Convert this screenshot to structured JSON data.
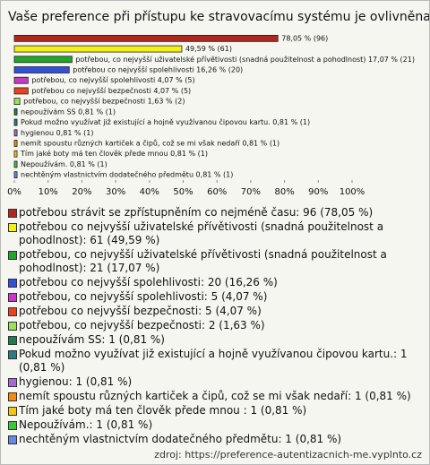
{
  "chart_data": {
    "type": "hbar",
    "title": "Vaše preference při přístupu ke stravovacímu systému je ovlivněna:",
    "values": [
      78.05,
      49.59,
      17.07,
      16.26,
      4.07,
      4.07,
      1.63,
      0.81,
      0.81,
      0.81,
      0.81,
      0.81,
      0.81,
      0.81
    ],
    "value_labels": [
      "78,05 % (96)",
      "49,59 % (61)",
      "potřebou, co nejvyšší uživatelské přívětivosti (snadná použitelnost a pohodlnost) 17,07 % (21)",
      "potřebou co nejvyšší spolehlivosti 16,26 % (20)",
      "potřebou, co nejvyšší spolehlivosti 4,07 % (5)",
      "potřebou co nejvyšší bezpečnosti 4,07 % (5)",
      "potřebou, co nejvyšší bezpečnosti 1,63 % (2)",
      "nepoužívám SS 0,81 % (1)",
      "Pokud možno využívat již existující a hojně využívanou čipovou kartu. 0,81 % (1)",
      "hygienou 0,81 % (1)",
      "nemít spoustu různých kartiček a čipů, což se mi však nedaří 0,81 % (1)",
      "Tím jaké boty má ten člověk přede mnou  0,81 % (1)",
      "Nepoužívám. 0,81 % (1)",
      "nechtěným vlastnictvím dodatečného předmětu 0,81 % (1)"
    ],
    "colors": [
      "#b3261e",
      "#f2ef1a",
      "#22a52a",
      "#3350d6",
      "#c838c8",
      "#e8431f",
      "#98e060",
      "#237a52",
      "#2f7884",
      "#a86ad0",
      "#f28a14",
      "#f5c518",
      "#3cc63c",
      "#6688dd"
    ],
    "legend": [
      "potřebou strávit se zpřístupněním co nejméně času: 96 (78,05 %)",
      "potřebou co nejvyšší uživatelské přívětivosti (snadná použitelnost a pohodlnost): 61 (49,59 %)",
      "potřebou, co nejvyšší uživatelské přívětivosti (snadná použitelnost a pohodlnost): 21 (17,07 %)",
      "potřebou co nejvyšší spolehlivosti: 20 (16,26 %)",
      "potřebou, co nejvyšší spolehlivosti: 5 (4,07 %)",
      "potřebou co nejvyšší bezpečnosti: 5 (4,07 %)",
      "potřebou, co nejvyšší bezpečnosti: 2 (1,63 %)",
      "nepoužívám SS: 1 (0,81 %)",
      "Pokud možno využívat již existující a hojně využívanou čipovou kartu.: 1 (0,81 %)",
      "hygienou: 1 (0,81 %)",
      "nemít spoustu různých kartiček a čipů, což se mi však nedaří: 1 (0,81 %)",
      "Tím jaké boty má ten člověk přede mnou : 1 (0,81 %)",
      "Nepoužívám.: 1 (0,81 %)",
      "nechtěným vlastnictvím dodatečného předmětu: 1 (0,81 %)"
    ],
    "xlim": [
      0,
      100
    ],
    "xticks": [
      {
        "value": 0,
        "label": "0%"
      },
      {
        "value": 10,
        "label": "10%"
      },
      {
        "value": 20,
        "label": "20%"
      },
      {
        "value": 30,
        "label": "30%"
      },
      {
        "value": 40,
        "label": "40%"
      },
      {
        "value": 50,
        "label": "50%"
      },
      {
        "value": 60,
        "label": "60%"
      },
      {
        "value": 70,
        "label": "70%"
      },
      {
        "value": 80,
        "label": "80%"
      },
      {
        "value": 90,
        "label": "90%"
      },
      {
        "value": 100,
        "label": "100%"
      }
    ],
    "source": "zdroj: https://preference-autentizacnich-me.vyplnto.cz"
  }
}
